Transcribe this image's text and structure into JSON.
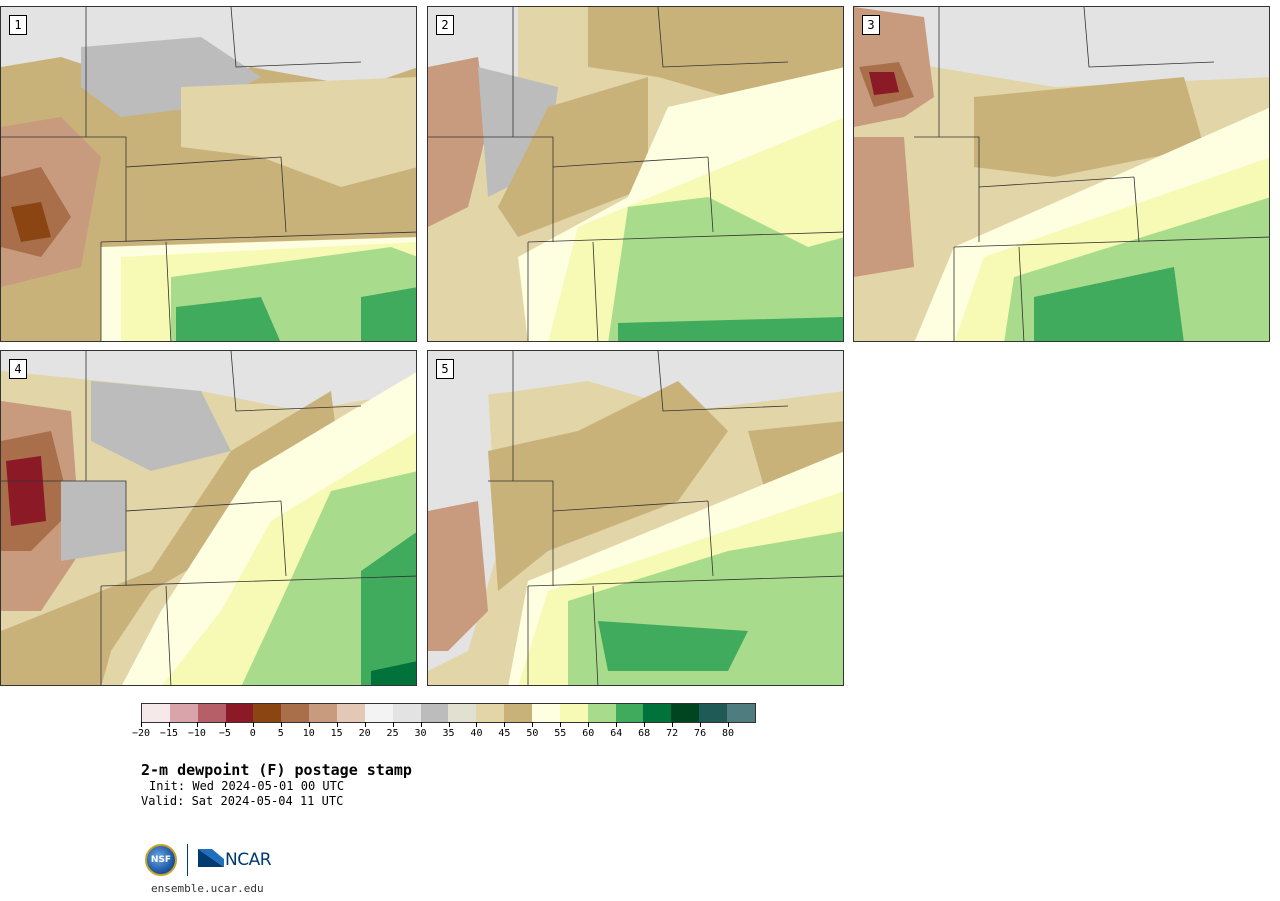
{
  "panels": [
    {
      "label": "1"
    },
    {
      "label": "2"
    },
    {
      "label": "3"
    },
    {
      "label": "4"
    },
    {
      "label": "5"
    }
  ],
  "colorbar": {
    "colors": [
      "#f5e9ea",
      "#d9a5ab",
      "#b65f68",
      "#8b1a26",
      "#8b4513",
      "#a86f4a",
      "#c89a7e",
      "#e3c8b5",
      "#f3f3f3",
      "#e3e3e3",
      "#bcbcbc",
      "#e2e0d0",
      "#e2d5a8",
      "#c9b27a",
      "#fefee0",
      "#f6fab4",
      "#a8dc8c",
      "#41ab5d",
      "#00723a",
      "#00451f",
      "#1f5a56",
      "#4f7c7f"
    ],
    "tick_labels": [
      "−20",
      "−15",
      "−10",
      "−5",
      "0",
      "5",
      "10",
      "15",
      "20",
      "25",
      "30",
      "35",
      "40",
      "45",
      "50",
      "55",
      "60",
      "64",
      "68",
      "72",
      "76",
      "80"
    ]
  },
  "title": "2-m dewpoint (F) postage stamp",
  "init": "Init: Wed 2024-05-01 00 UTC",
  "valid": "Valid: Sat 2024-05-04 11 UTC",
  "logo": {
    "nsf_text": "NSF",
    "ncar_text": "NCAR"
  },
  "site": "ensemble.ucar.edu"
}
